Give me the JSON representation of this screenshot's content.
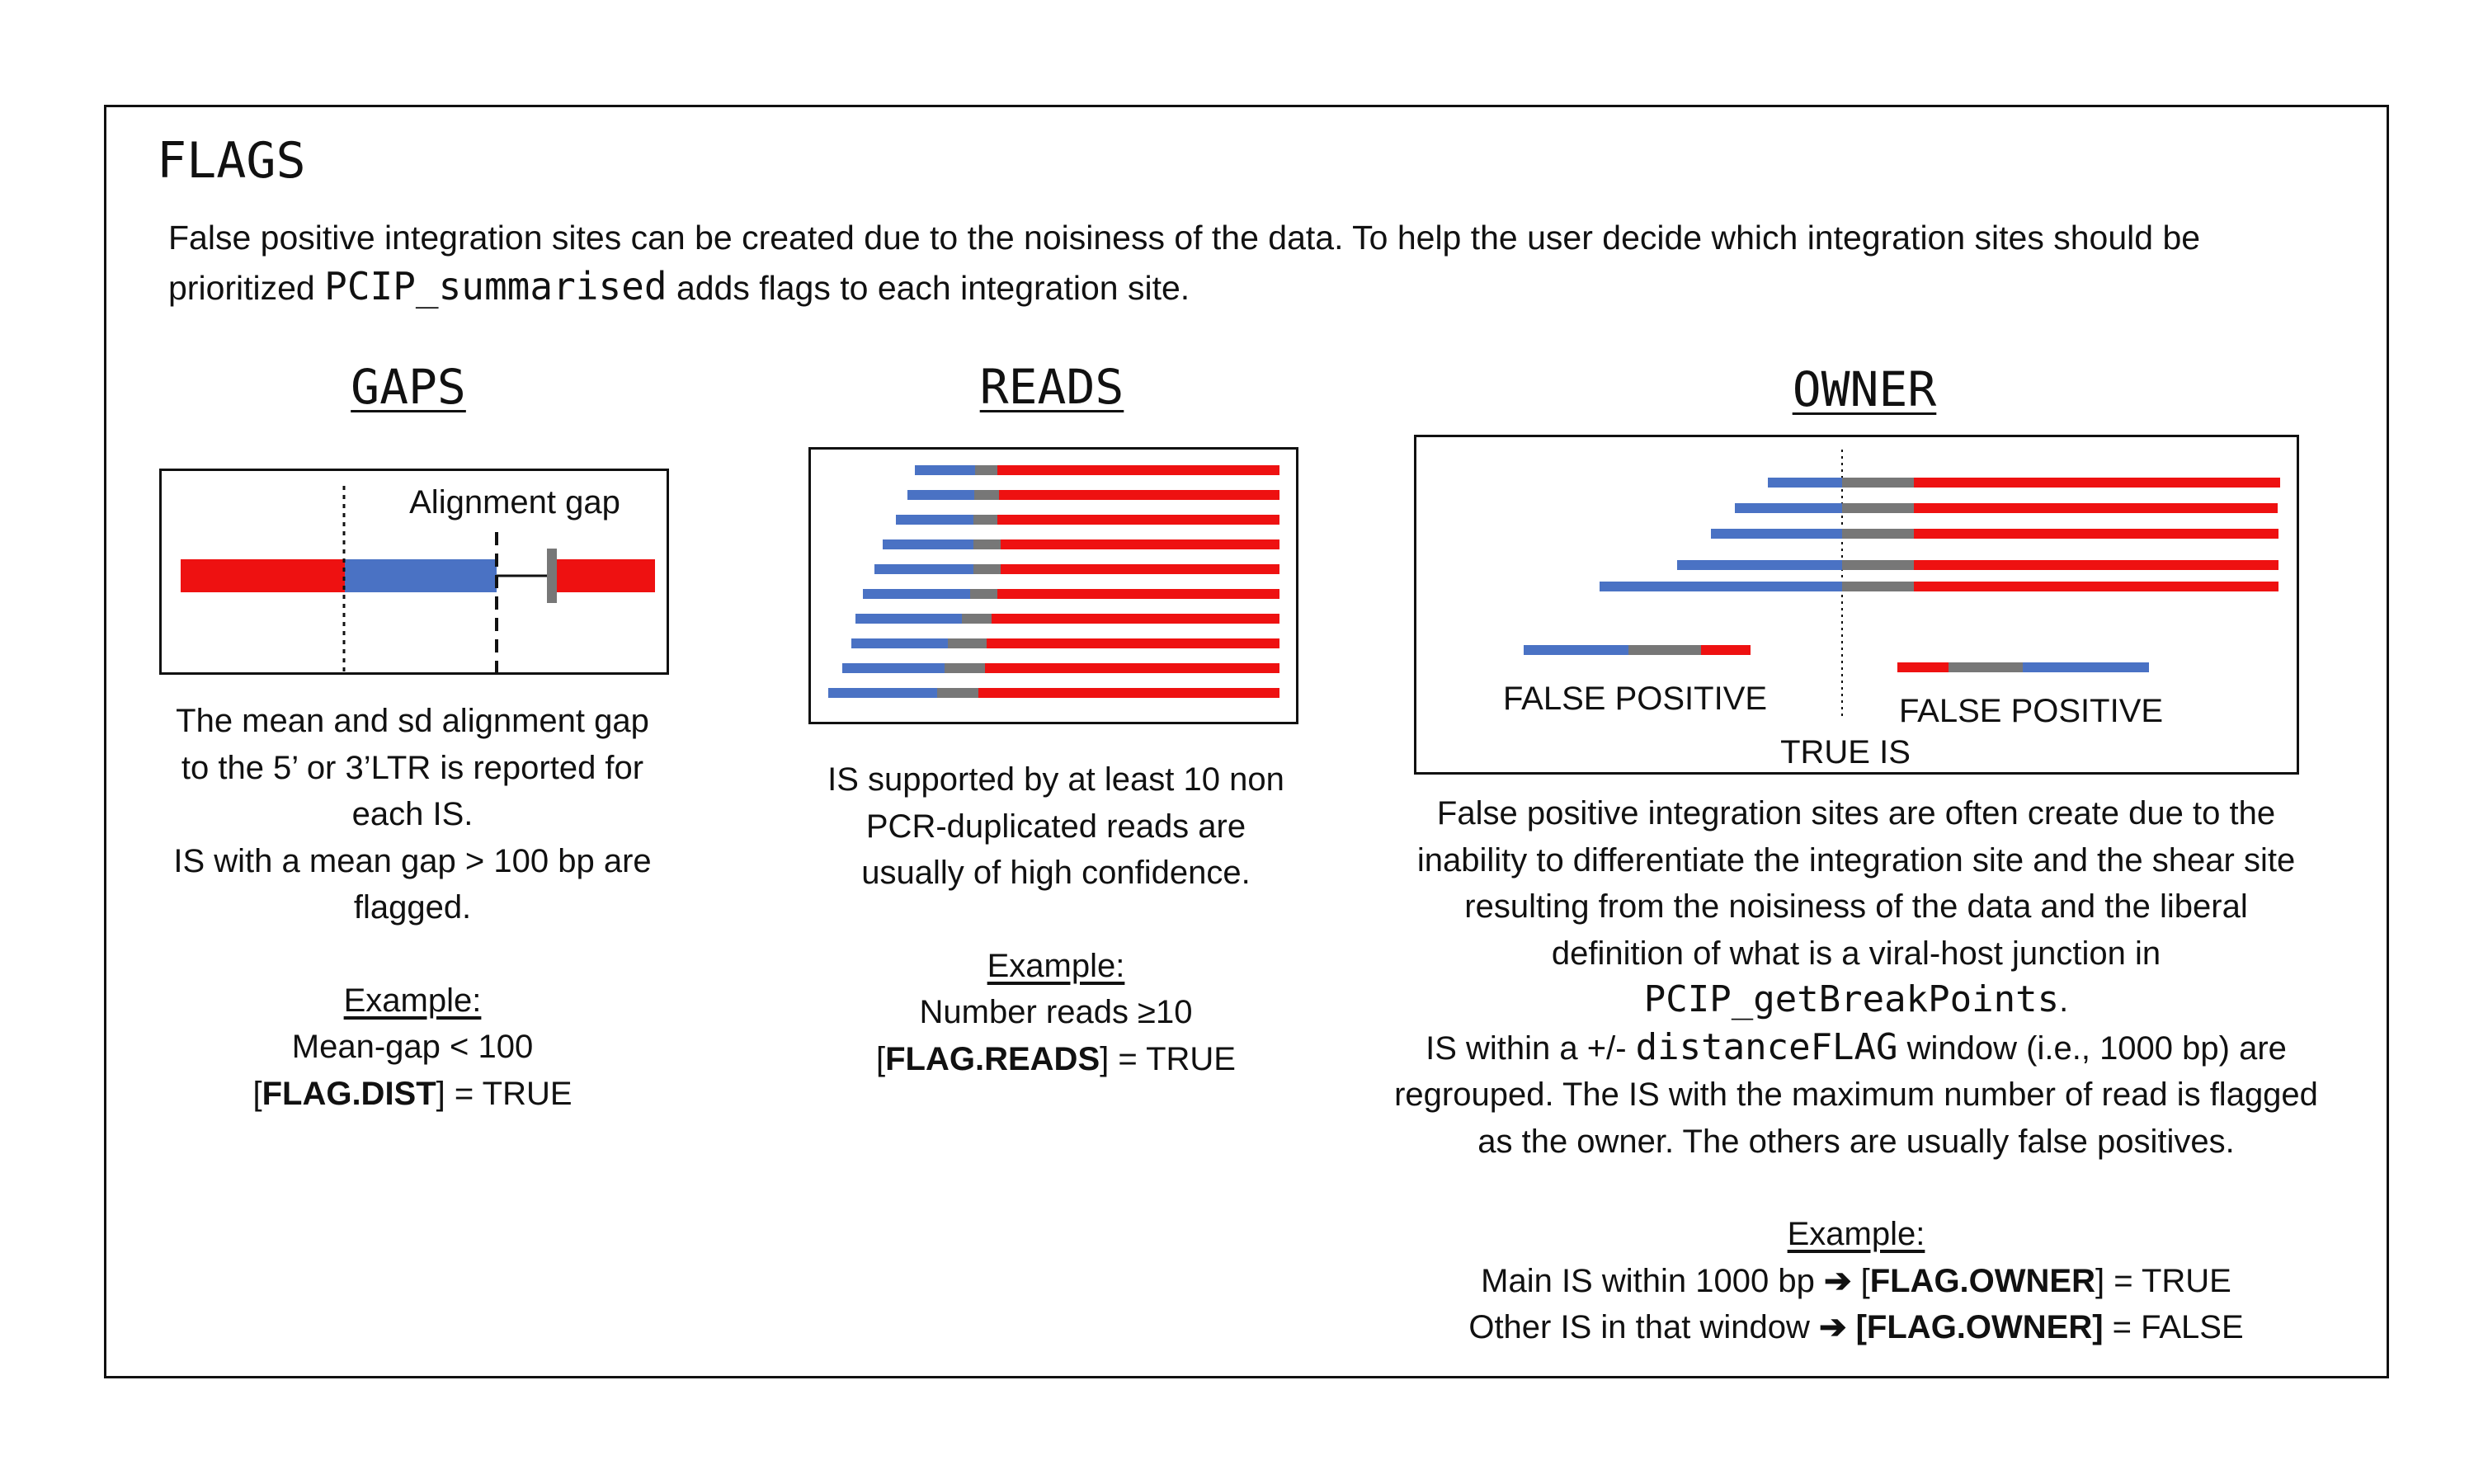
{
  "title": "FLAGS",
  "intro": {
    "line1": "False positive integration sites can be created due to the noisiness of the data. To help the user decide which integration sites should be",
    "line2_prefix": "prioritized ",
    "line2_code": "PCIP_summarised",
    "line2_suffix": " adds flags to each integration site."
  },
  "gaps": {
    "heading": "GAPS",
    "diagram_label": "Alignment gap",
    "desc1": "The mean and sd alignment gap",
    "desc2": "to the 5’ or 3’LTR is reported for",
    "desc3": "each IS.",
    "desc4": "IS with a mean gap > 100 bp are",
    "desc5": "flagged.",
    "example_label": "Example:",
    "example_line1": "Mean-gap < 100",
    "flag_open": "[",
    "flag_name": "FLAG.DIST",
    "flag_close": "] = TRUE"
  },
  "reads": {
    "heading": "READS",
    "desc1": "IS supported by at least 10 non",
    "desc2": "PCR-duplicated reads are",
    "desc3": "usually of high confidence.",
    "example_label": "Example:",
    "example_line1": "Number reads ≥10",
    "flag_open": "[",
    "flag_name": "FLAG.READS",
    "flag_close": "] = TRUE"
  },
  "owner": {
    "heading": "OWNER",
    "label_fp_left": "FALSE POSITIVE",
    "label_fp_right": "FALSE POSITIVE",
    "label_true": "TRUE IS",
    "desc1": "False positive integration sites are often create due to the",
    "desc2": "inability to differentiate the integration site and the shear site",
    "desc3": "resulting from the noisiness of the data and the liberal",
    "desc4": "definition of what is a viral-host junction in",
    "desc5_code": "PCIP_getBreakPoints",
    "desc5_suffix": ".",
    "desc6_prefix": "IS within a +/- ",
    "desc6_code": "distanceFLAG",
    "desc6_suffix": " window (i.e., 1000 bp) are",
    "desc7": "regrouped. The IS with the maximum number of read is flagged",
    "desc8": "as the owner. The others are usually false positives.",
    "example_label": "Example:",
    "example1_prefix": "Main IS within 1000 bp ",
    "example1_arrow": "➔",
    "example1_open": " [",
    "example1_flag": "FLAG.OWNER",
    "example1_close": "] = TRUE",
    "example2_prefix": "Other IS in that window ",
    "example2_arrow": "➔",
    "example2_flag": " [FLAG.OWNER]",
    "example2_close": " = FALSE"
  },
  "colors": {
    "blue": "#4a72c4",
    "grey": "#777777",
    "red": "#ee1111",
    "black": "#111111"
  }
}
